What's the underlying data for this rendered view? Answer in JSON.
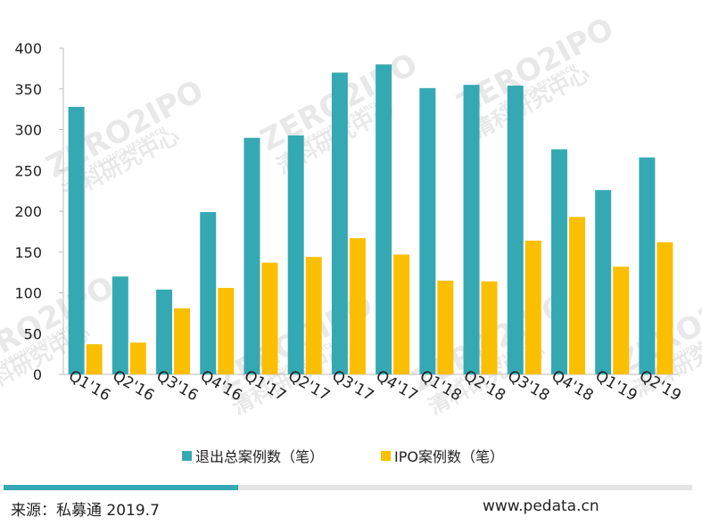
{
  "chart_data": {
    "type": "bar",
    "categories": [
      "Q1'16",
      "Q2'16",
      "Q3'16",
      "Q4'16",
      "Q1'17",
      "Q2'17",
      "Q3'17",
      "Q4'17",
      "Q1'18",
      "Q2'18",
      "Q3'18",
      "Q4'18",
      "Q1'19",
      "Q2'19"
    ],
    "series": [
      {
        "name": "退出总案例数（笔）",
        "color": "#35a9b3",
        "values": [
          328,
          120,
          104,
          199,
          290,
          293,
          370,
          380,
          351,
          355,
          354,
          276,
          226,
          266
        ]
      },
      {
        "name": "IPO案例数（笔）",
        "color": "#f9bf00",
        "values": [
          37,
          39,
          81,
          106,
          137,
          144,
          167,
          147,
          115,
          114,
          164,
          193,
          132,
          162
        ]
      }
    ],
    "ylim": [
      0,
      400
    ],
    "yticks": [
      0,
      50,
      100,
      150,
      200,
      250,
      300,
      350,
      400
    ],
    "legend_position": "bottom",
    "grid": false
  },
  "footer": {
    "source": "来源：私募通 2019.7",
    "site": "www.pedata.cn"
  },
  "watermark": {
    "text": "ZERO2IPO",
    "subtitle": "清科研究中心",
    "research": "ZERO2IPO RESEARCH"
  }
}
